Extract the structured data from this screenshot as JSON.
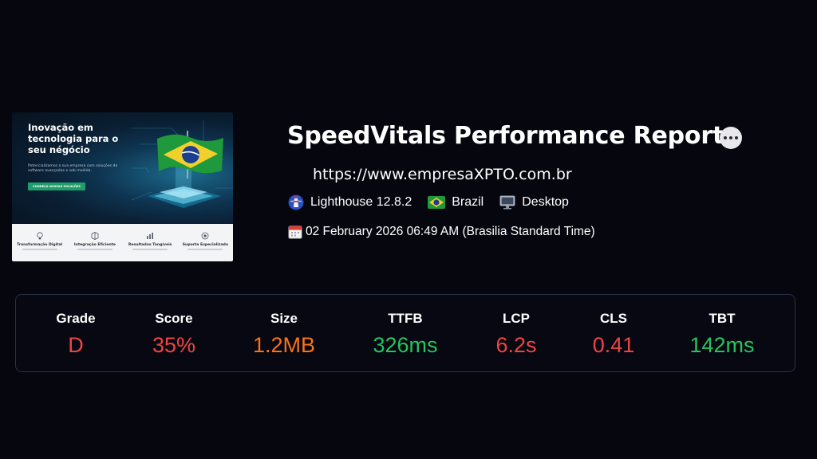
{
  "colors": {
    "background": "#06060f",
    "red": "#ef4444",
    "orange": "#f97316",
    "green": "#22c55e",
    "panel_border": "#273244"
  },
  "preview": {
    "title": "Inovação em tecnologia para o seu négócio",
    "subtitle": "Potencializamos a sua empresa com soluções de software avançadas e sob medida.",
    "cta": "CONHEÇA NOSSAS SOLUÇÕES",
    "features": [
      {
        "label": "Transformação Digital",
        "icon": "lightbulb-icon"
      },
      {
        "label": "Integração Eficiente",
        "icon": "cube-icon"
      },
      {
        "label": "Resultados Tangíveis",
        "icon": "bar-chart-icon"
      },
      {
        "label": "Suporte Especializado",
        "icon": "support-icon"
      }
    ]
  },
  "report": {
    "title": "SpeedVitals Performance Report",
    "url": "https://www.empresaXPTO.com.br",
    "lighthouse": "Lighthouse 12.8.2",
    "location": "Brazil",
    "device": "Desktop",
    "date": "02 February 2026 06:49 AM (Brasilia Standard Time)"
  },
  "metrics": [
    {
      "label": "Grade",
      "value": "D",
      "color": "#ef4444"
    },
    {
      "label": "Score",
      "value": "35%",
      "color": "#ef4444"
    },
    {
      "label": "Size",
      "value": "1.2MB",
      "color": "#f97316"
    },
    {
      "label": "TTFB",
      "value": "326ms",
      "color": "#22c55e"
    },
    {
      "label": "LCP",
      "value": "6.2s",
      "color": "#ef4444"
    },
    {
      "label": "CLS",
      "value": "0.41",
      "color": "#ef4444"
    },
    {
      "label": "TBT",
      "value": "142ms",
      "color": "#22c55e"
    }
  ]
}
